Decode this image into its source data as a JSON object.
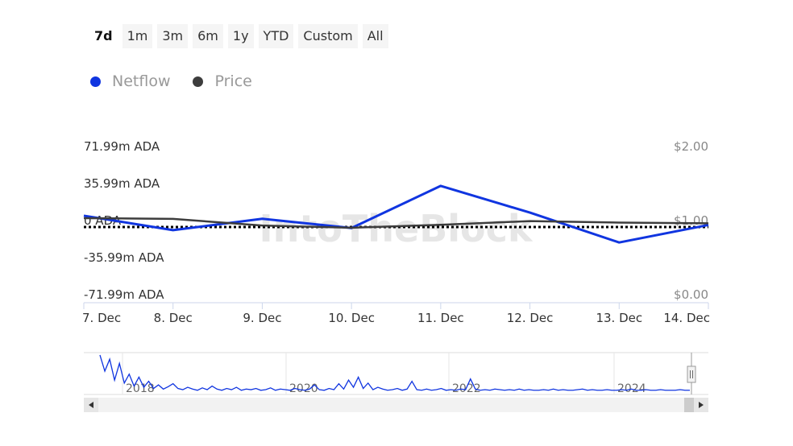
{
  "range_selector": {
    "buttons": [
      "7d",
      "1m",
      "3m",
      "6m",
      "1y",
      "YTD",
      "Custom",
      "All"
    ],
    "selected": "7d"
  },
  "legend": {
    "items": [
      {
        "label": "Netflow",
        "color": "#1035e0"
      },
      {
        "label": "Price",
        "color": "#3d3d3d"
      }
    ]
  },
  "watermark": "IntoTheBlock",
  "chart_data": {
    "type": "line",
    "x": [
      "7. Dec",
      "8. Dec",
      "9. Dec",
      "10. Dec",
      "11. Dec",
      "12. Dec",
      "13. Dec",
      "14. Dec"
    ],
    "series": [
      {
        "name": "Netflow",
        "axis": "left",
        "color": "#1035e0",
        "values": [
          11,
          -3,
          8,
          -1,
          40,
          14,
          -15,
          2
        ]
      },
      {
        "name": "Price",
        "axis": "right",
        "color": "#3d3d3d",
        "values": [
          1.12,
          1.11,
          1.02,
          0.99,
          1.03,
          1.08,
          1.06,
          1.05
        ]
      }
    ],
    "left_axis": {
      "ticks": [
        71.99,
        35.99,
        0,
        -35.99,
        -71.99
      ],
      "tick_labels": [
        "71.99m ADA",
        "35.99m ADA",
        "0 ADA",
        "-35.99m ADA",
        "-71.99m ADA"
      ],
      "ylim": [
        -71.99,
        71.99
      ]
    },
    "right_axis": {
      "ticks": [
        2.0,
        1.0,
        0.0
      ],
      "tick_labels": [
        "$2.00",
        "$1.00",
        "$0.00"
      ],
      "ylim": [
        0,
        2
      ]
    },
    "zero_line": "dotted",
    "legend_placement": "top-left"
  },
  "navigator": {
    "year_labels": [
      "2018",
      "2020",
      "2022",
      "2024"
    ],
    "series_values": [
      62,
      35,
      55,
      20,
      48,
      15,
      30,
      10,
      25,
      8,
      18,
      6,
      12,
      5,
      9,
      14,
      6,
      4,
      8,
      5,
      3,
      7,
      4,
      10,
      5,
      3,
      6,
      4,
      8,
      3,
      5,
      4,
      6,
      3,
      4,
      7,
      3,
      5,
      4,
      3,
      6,
      4,
      3,
      5,
      12,
      4,
      3,
      6,
      4,
      14,
      5,
      20,
      8,
      25,
      6,
      15,
      4,
      8,
      5,
      3,
      4,
      6,
      3,
      5,
      18,
      4,
      3,
      5,
      3,
      4,
      6,
      3,
      4,
      3,
      5,
      4,
      22,
      5,
      3,
      4,
      3,
      5,
      4,
      3,
      4,
      3,
      5,
      3,
      4,
      3,
      3,
      4,
      3,
      5,
      3,
      4,
      3,
      3,
      4,
      5,
      3,
      4,
      3,
      3,
      4,
      3,
      3,
      4,
      3,
      5,
      3,
      3,
      4,
      3,
      3,
      4,
      3,
      3,
      3,
      4,
      3,
      3
    ],
    "handle_icon": "grip-icon",
    "scroll_left_icon": "arrow-left-icon",
    "scroll_right_icon": "arrow-right-icon"
  }
}
